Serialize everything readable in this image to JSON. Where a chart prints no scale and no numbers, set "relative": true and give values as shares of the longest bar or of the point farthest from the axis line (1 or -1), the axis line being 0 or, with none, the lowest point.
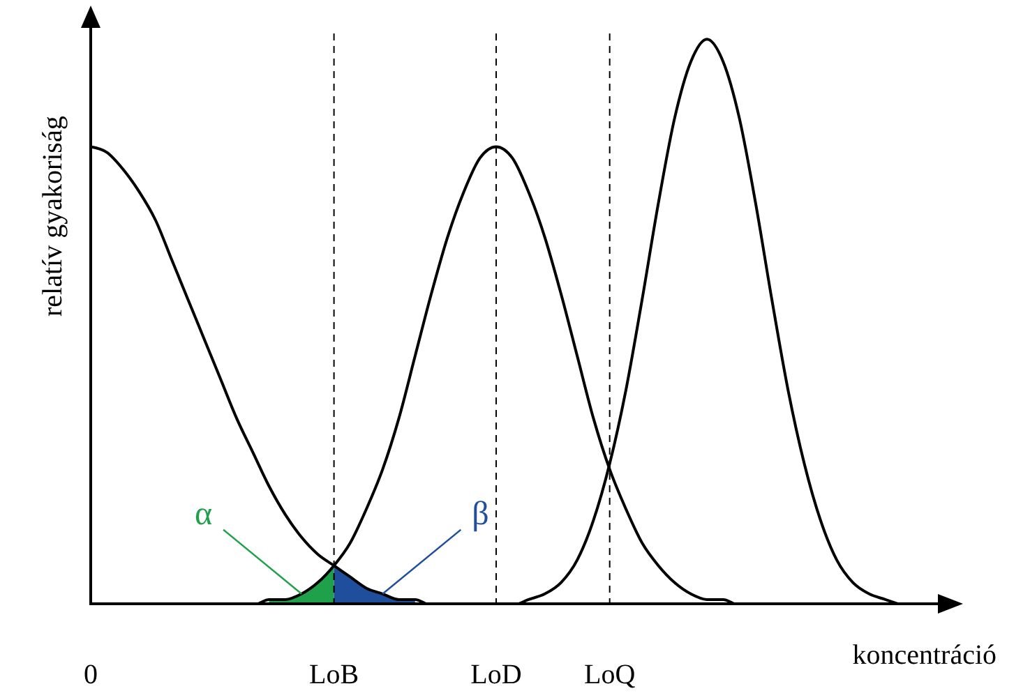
{
  "chart_data": {
    "type": "line",
    "relative": true,
    "ylabel": "relatív gyakoriság",
    "xlabel": "koncentráció",
    "categories": [
      "0",
      null,
      null,
      null,
      null,
      null,
      null,
      null,
      null,
      null,
      null,
      null,
      null,
      null,
      null,
      "LoB",
      null,
      null,
      null,
      null,
      null,
      null,
      null,
      null,
      null,
      "LoD",
      null,
      null,
      null,
      null,
      null,
      null,
      "LoQ",
      null,
      null,
      null,
      null,
      null,
      null,
      null,
      null,
      null,
      null,
      null,
      null,
      null,
      null,
      null,
      null,
      null,
      null
    ],
    "series": [
      {
        "type": "area",
        "name": "α",
        "color": "#1fa04a",
        "values": [
          null,
          null,
          null,
          null,
          null,
          null,
          null,
          null,
          null,
          null,
          null,
          0.01,
          0.01,
          0.02,
          0.04,
          0.07,
          null,
          null,
          null,
          null,
          null,
          null,
          null,
          null,
          null,
          null,
          null,
          null,
          null,
          null,
          null,
          null,
          null,
          null,
          null,
          null,
          null,
          null,
          null,
          null,
          null,
          null,
          null,
          null,
          null,
          null,
          null,
          null,
          null,
          null,
          null
        ]
      },
      {
        "type": "area",
        "name": "β",
        "color": "#1f4e9c",
        "values": [
          null,
          null,
          null,
          null,
          null,
          null,
          null,
          null,
          null,
          null,
          null,
          null,
          null,
          null,
          null,
          0.07,
          0.05,
          0.03,
          0.02,
          0.01,
          0.01,
          null,
          null,
          null,
          null,
          null,
          null,
          null,
          null,
          null,
          null,
          null,
          null,
          null,
          null,
          null,
          null,
          null,
          null,
          null,
          null,
          null,
          null,
          null,
          null,
          null,
          null,
          null,
          null,
          null,
          null
        ]
      },
      {
        "color": "#000000",
        "values": [
          0.81,
          0.8,
          0.77,
          0.73,
          0.68,
          0.61,
          0.54,
          0.47,
          0.4,
          0.33,
          0.27,
          0.21,
          0.16,
          0.12,
          0.09,
          0.07,
          0.05,
          0.03,
          0.02,
          0.01,
          0.01,
          0,
          0,
          0,
          0,
          0,
          0,
          0,
          0,
          0,
          0,
          0,
          0,
          0,
          0,
          0,
          0,
          0,
          0,
          0,
          0,
          0,
          0,
          0,
          0,
          0,
          0,
          0,
          0,
          0,
          0
        ]
      },
      {
        "color": "#000000",
        "values": [
          0,
          0,
          0,
          0,
          0,
          0,
          0,
          0,
          0,
          0,
          0,
          0.01,
          0.01,
          0.02,
          0.04,
          0.07,
          0.11,
          0.17,
          0.24,
          0.33,
          0.44,
          0.55,
          0.65,
          0.73,
          0.79,
          0.81,
          0.79,
          0.73,
          0.65,
          0.55,
          0.44,
          0.33,
          0.24,
          0.17,
          0.11,
          0.07,
          0.04,
          0.02,
          0.01,
          0.01,
          0,
          0,
          0,
          0,
          0,
          0,
          0,
          0,
          0,
          0,
          0
        ]
      },
      {
        "color": "#000000",
        "values": [
          0,
          0,
          0,
          0,
          0,
          0,
          0,
          0,
          0,
          0,
          0,
          0,
          0,
          0,
          0,
          0,
          0,
          0,
          0,
          0,
          0,
          0,
          0,
          0,
          0,
          0,
          0,
          0.01,
          0.02,
          0.04,
          0.08,
          0.15,
          0.25,
          0.38,
          0.54,
          0.71,
          0.86,
          0.96,
          1,
          0.96,
          0.86,
          0.71,
          0.54,
          0.38,
          0.25,
          0.15,
          0.08,
          0.04,
          0.02,
          0.01,
          0
        ]
      }
    ],
    "ref_lines": [
      {
        "axis": "x",
        "value": "LoB",
        "line_style": "dashed",
        "color": "#000000"
      },
      {
        "axis": "x",
        "value": "LoD",
        "line_style": "dashed",
        "color": "#000000"
      },
      {
        "axis": "x",
        "value": "LoQ",
        "line_style": "dashed",
        "color": "#000000"
      }
    ]
  }
}
